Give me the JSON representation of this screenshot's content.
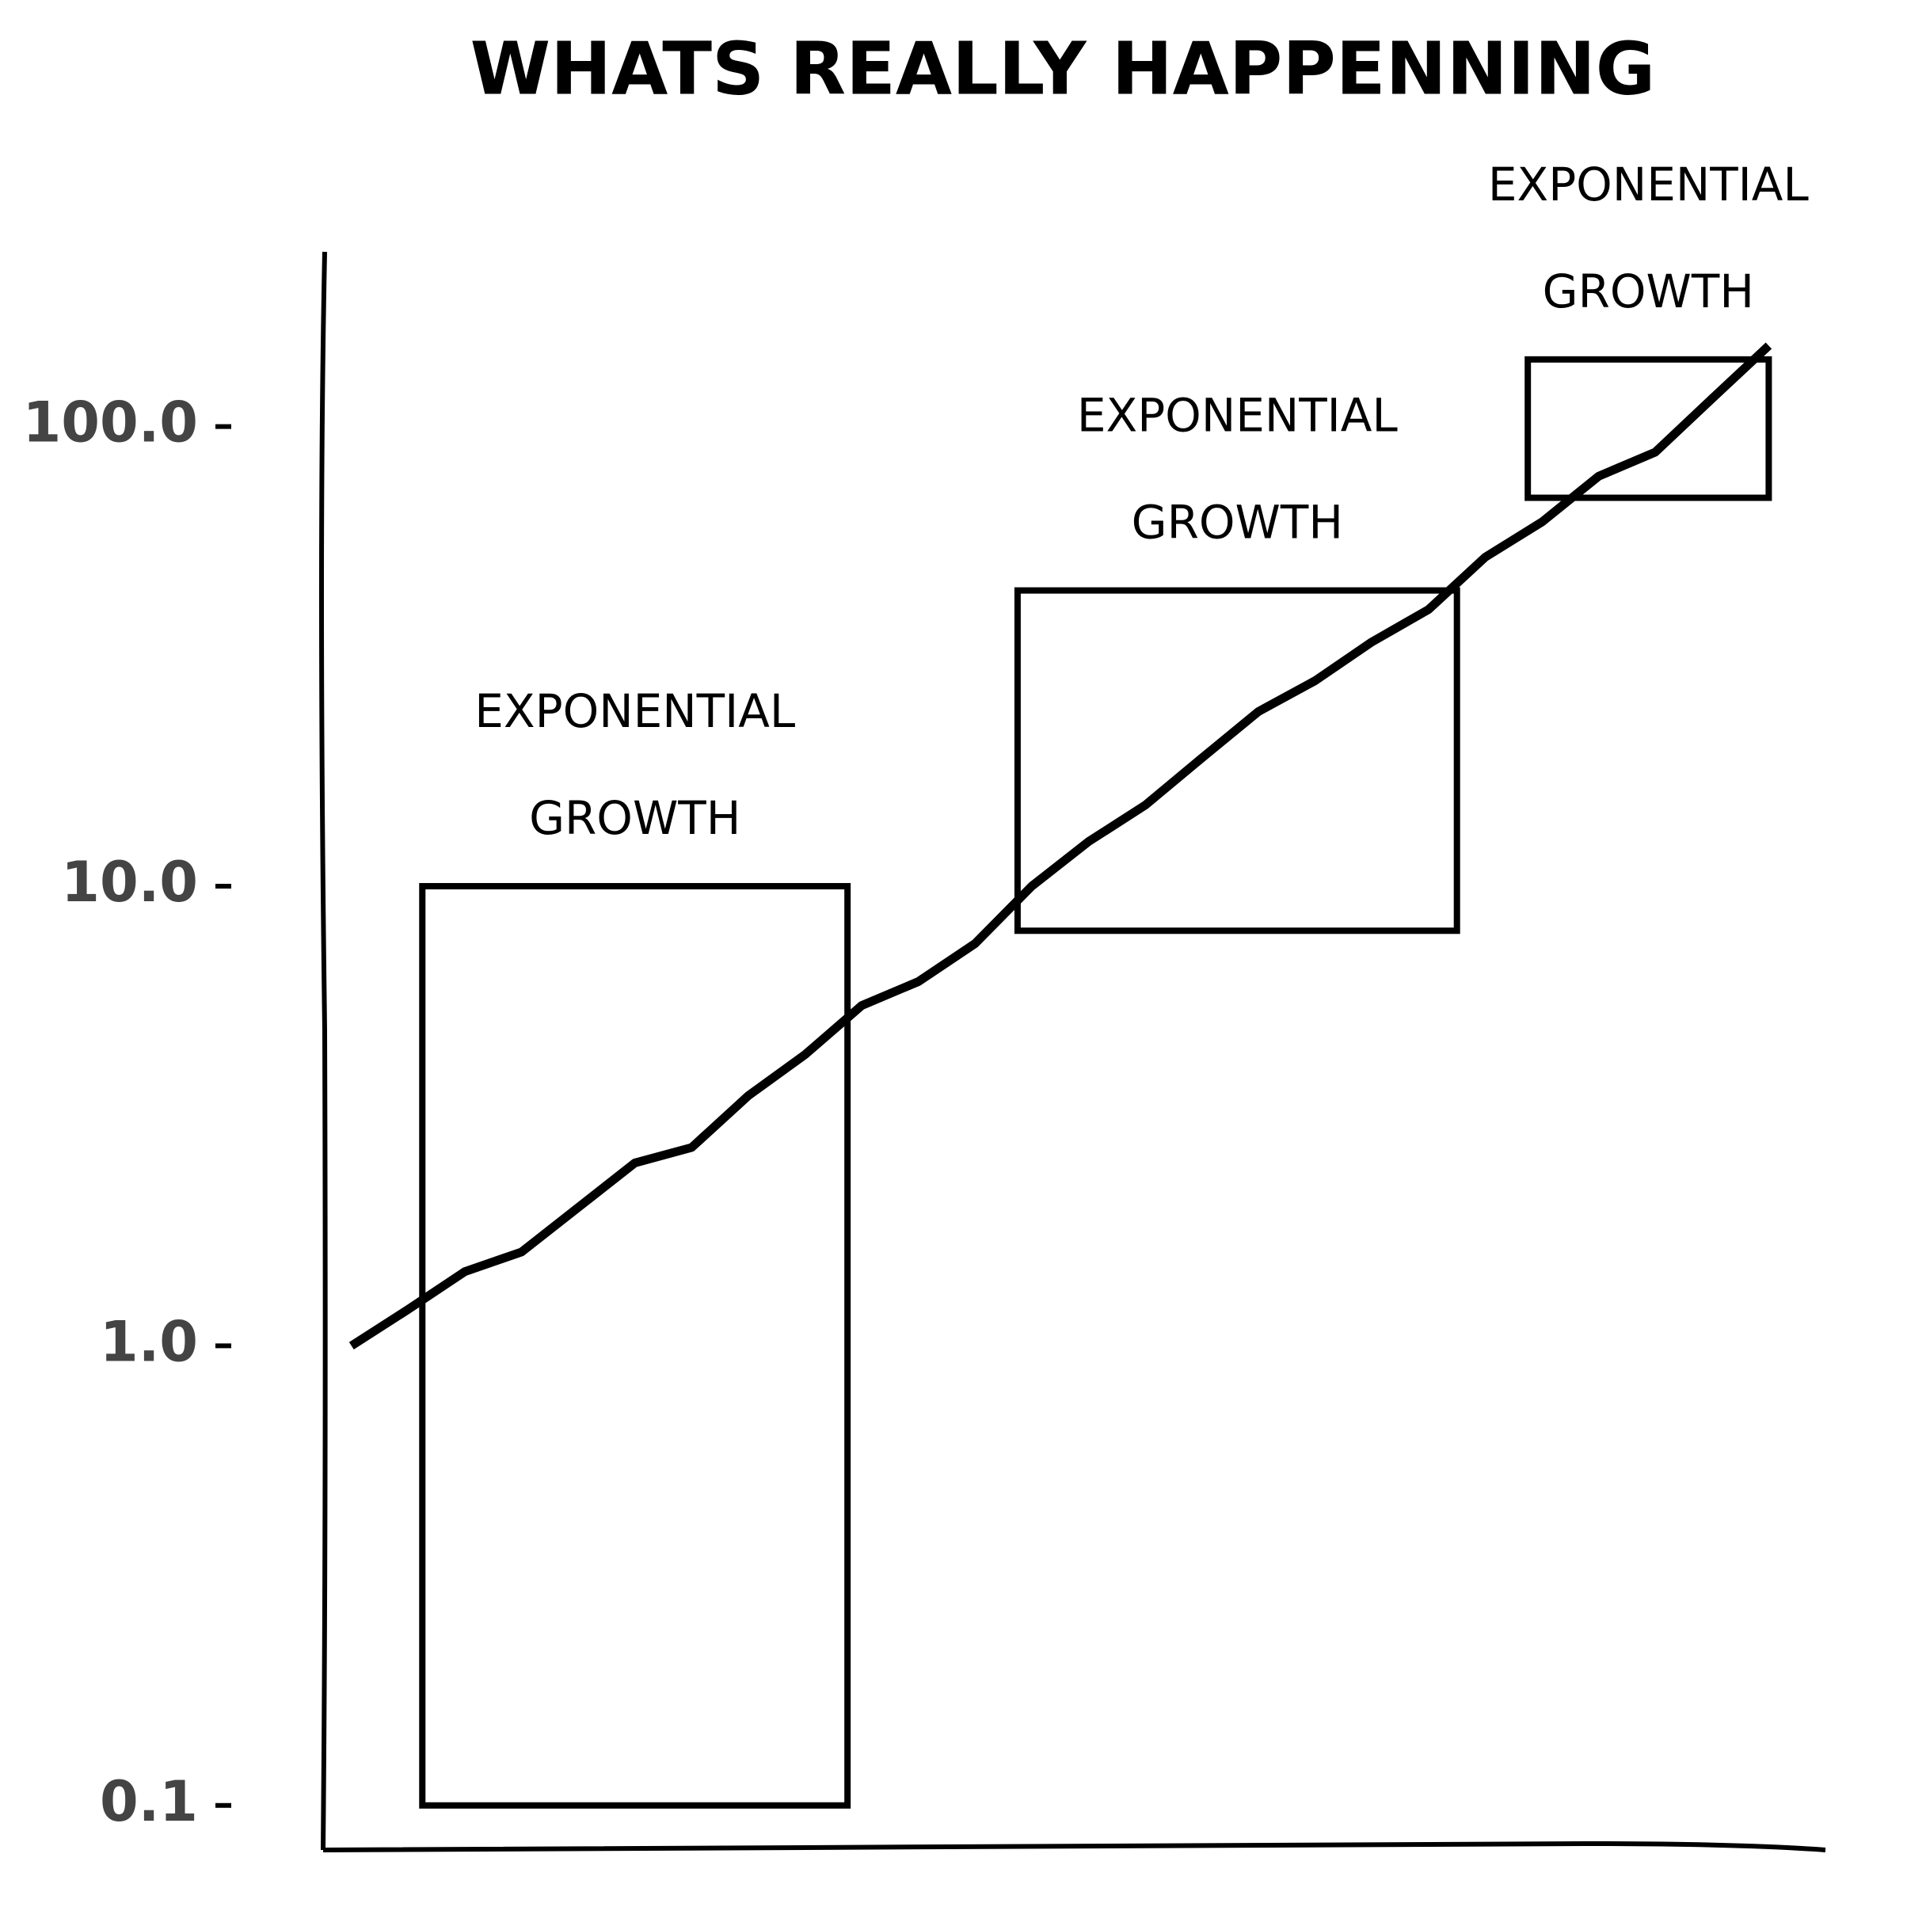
{
  "chart_data": {
    "type": "line",
    "title": "WHATS REALLY HAPPENNING",
    "x": [
      0,
      4,
      8,
      12,
      16,
      20,
      24,
      28,
      32,
      36,
      40,
      44,
      48,
      52,
      56,
      60,
      64,
      68,
      72,
      76,
      80,
      84,
      88,
      92,
      96,
      100
    ],
    "series": [
      {
        "color": "#000000",
        "values": [
          1.0,
          1.2,
          1.45,
          1.6,
          2.0,
          2.5,
          2.7,
          3.5,
          4.3,
          5.5,
          6.2,
          7.5,
          10,
          12.5,
          15,
          19,
          24,
          28,
          34,
          40,
          52,
          62,
          78,
          88,
          115,
          150
        ]
      }
    ],
    "xlim": [
      -2,
      104
    ],
    "ylim": [
      0.08,
      240
    ],
    "log_y": true,
    "yticks": [
      0.1,
      {
        "value": 1,
        "label": "1.0"
      },
      {
        "value": 10,
        "label": "10.0"
      },
      {
        "value": 100,
        "label": "100.0"
      }
    ],
    "annotations": [
      {
        "lines": [
          "EXPONENTIAL",
          "GROWTH"
        ],
        "xrange": [
          5,
          35
        ],
        "yrange": [
          0.1,
          10
        ]
      },
      {
        "lines": [
          "EXPONENTIAL",
          "GROWTH"
        ],
        "xrange": [
          47,
          78
        ],
        "yrange": [
          8,
          44
        ]
      },
      {
        "lines": [
          "EXPONENTIAL",
          "GROWTH"
        ],
        "xrange": [
          83,
          100
        ],
        "yrange": [
          70,
          140
        ]
      }
    ]
  }
}
